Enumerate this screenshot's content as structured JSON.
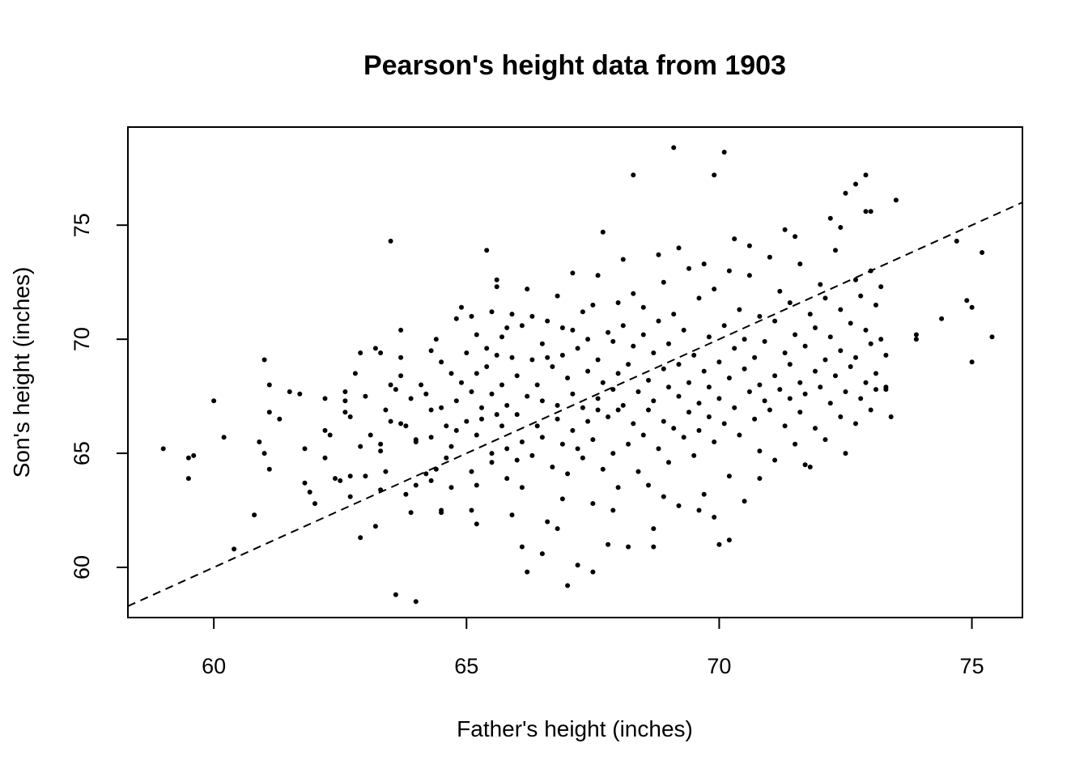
{
  "chart_data": {
    "type": "scatter",
    "title": "Pearson's height data from 1903",
    "xlabel": "Father's height (inches)",
    "ylabel": "Son's height (inches)",
    "xlim": [
      58.3,
      76.0
    ],
    "ylim": [
      57.8,
      79.3
    ],
    "xticks": [
      60,
      65,
      70,
      75
    ],
    "yticks": [
      60,
      65,
      70,
      75
    ],
    "grid": false,
    "legend": "none",
    "point_color": "#000000",
    "reference_line": {
      "style": "dashed",
      "x1": 58.3,
      "y1": 58.3,
      "x2": 76.0,
      "y2": 76.0
    },
    "points": [
      [
        59.0,
        65.2
      ],
      [
        59.5,
        64.8
      ],
      [
        59.5,
        63.9
      ],
      [
        59.6,
        64.9
      ],
      [
        60.0,
        67.3
      ],
      [
        60.2,
        65.7
      ],
      [
        60.4,
        60.8
      ],
      [
        60.8,
        62.3
      ],
      [
        60.9,
        65.5
      ],
      [
        61.0,
        65.0
      ],
      [
        61.0,
        69.1
      ],
      [
        61.1,
        66.8
      ],
      [
        61.1,
        64.3
      ],
      [
        61.1,
        68.0
      ],
      [
        61.3,
        66.5
      ],
      [
        61.5,
        67.7
      ],
      [
        61.7,
        67.6
      ],
      [
        61.8,
        65.2
      ],
      [
        61.8,
        63.7
      ],
      [
        61.9,
        63.3
      ],
      [
        62.0,
        62.8
      ],
      [
        62.2,
        64.8
      ],
      [
        62.2,
        66.0
      ],
      [
        62.2,
        67.4
      ],
      [
        62.3,
        65.8
      ],
      [
        62.4,
        63.9
      ],
      [
        62.5,
        63.8
      ],
      [
        62.6,
        67.7
      ],
      [
        62.6,
        67.3
      ],
      [
        62.6,
        66.8
      ],
      [
        62.7,
        64.0
      ],
      [
        62.7,
        63.1
      ],
      [
        62.7,
        66.6
      ],
      [
        62.8,
        68.5
      ],
      [
        62.9,
        61.3
      ],
      [
        62.9,
        69.4
      ],
      [
        62.9,
        65.3
      ],
      [
        63.0,
        64.0
      ],
      [
        63.0,
        67.5
      ],
      [
        63.1,
        65.8
      ],
      [
        63.2,
        61.8
      ],
      [
        63.2,
        69.6
      ],
      [
        63.3,
        65.4
      ],
      [
        63.3,
        69.4
      ],
      [
        63.3,
        65.1
      ],
      [
        63.4,
        64.2
      ],
      [
        63.4,
        66.9
      ],
      [
        63.5,
        74.3
      ],
      [
        63.5,
        66.4
      ],
      [
        63.5,
        68.0
      ],
      [
        63.6,
        58.8
      ],
      [
        63.6,
        67.8
      ],
      [
        63.7,
        66.3
      ],
      [
        63.7,
        69.2
      ],
      [
        63.7,
        70.4
      ],
      [
        63.8,
        66.2
      ],
      [
        63.8,
        63.2
      ],
      [
        63.9,
        67.4
      ],
      [
        64.0,
        65.6
      ],
      [
        64.0,
        63.6
      ],
      [
        64.0,
        65.5
      ],
      [
        64.1,
        68.0
      ],
      [
        64.2,
        64.1
      ],
      [
        64.2,
        67.6
      ],
      [
        64.3,
        69.5
      ],
      [
        64.3,
        65.7
      ],
      [
        64.3,
        66.9
      ],
      [
        64.3,
        63.8
      ],
      [
        64.4,
        64.3
      ],
      [
        64.5,
        62.4
      ],
      [
        64.5,
        67.0
      ],
      [
        64.5,
        69.0
      ],
      [
        64.6,
        66.2
      ],
      [
        64.7,
        68.5
      ],
      [
        64.7,
        65.3
      ],
      [
        64.7,
        63.5
      ],
      [
        64.8,
        66.0
      ],
      [
        64.8,
        70.9
      ],
      [
        64.8,
        67.3
      ],
      [
        64.9,
        71.4
      ],
      [
        65.0,
        69.4
      ],
      [
        65.0,
        66.4
      ],
      [
        65.1,
        62.5
      ],
      [
        65.1,
        64.2
      ],
      [
        65.1,
        67.7
      ],
      [
        65.2,
        70.2
      ],
      [
        65.2,
        65.8
      ],
      [
        65.2,
        68.5
      ],
      [
        65.2,
        63.6
      ],
      [
        65.3,
        67.0
      ],
      [
        65.3,
        66.5
      ],
      [
        65.4,
        68.8
      ],
      [
        65.4,
        69.6
      ],
      [
        65.4,
        73.9
      ],
      [
        65.5,
        65.0
      ],
      [
        65.5,
        67.6
      ],
      [
        65.5,
        71.2
      ],
      [
        65.5,
        64.6
      ],
      [
        65.6,
        72.6
      ],
      [
        65.6,
        72.3
      ],
      [
        65.6,
        69.3
      ],
      [
        65.6,
        66.7
      ],
      [
        65.7,
        66.2
      ],
      [
        65.7,
        68.0
      ],
      [
        65.8,
        63.9
      ],
      [
        65.8,
        70.5
      ],
      [
        65.8,
        65.2
      ],
      [
        65.8,
        67.1
      ],
      [
        65.9,
        69.2
      ],
      [
        65.9,
        71.1
      ],
      [
        66.0,
        66.7
      ],
      [
        66.0,
        64.7
      ],
      [
        66.0,
        68.4
      ],
      [
        66.1,
        70.6
      ],
      [
        66.1,
        65.5
      ],
      [
        66.1,
        63.5
      ],
      [
        66.2,
        67.5
      ],
      [
        66.2,
        59.8
      ],
      [
        66.3,
        69.1
      ],
      [
        66.3,
        71.0
      ],
      [
        66.3,
        64.9
      ],
      [
        66.4,
        68.0
      ],
      [
        66.4,
        66.2
      ],
      [
        66.5,
        67.3
      ],
      [
        66.5,
        69.8
      ],
      [
        66.5,
        65.7
      ],
      [
        66.6,
        62.0
      ],
      [
        66.6,
        70.8
      ],
      [
        66.7,
        64.4
      ],
      [
        66.7,
        68.8
      ],
      [
        66.8,
        61.7
      ],
      [
        66.8,
        66.5
      ],
      [
        66.8,
        71.9
      ],
      [
        66.8,
        67.1
      ],
      [
        66.9,
        69.3
      ],
      [
        66.9,
        65.4
      ],
      [
        66.9,
        70.5
      ],
      [
        67.0,
        64.1
      ],
      [
        67.0,
        68.3
      ],
      [
        67.1,
        66.0
      ],
      [
        67.1,
        67.6
      ],
      [
        67.1,
        70.4
      ],
      [
        67.2,
        60.1
      ],
      [
        67.2,
        65.2
      ],
      [
        67.2,
        69.6
      ],
      [
        67.3,
        71.2
      ],
      [
        67.3,
        67.0
      ],
      [
        67.3,
        64.8
      ],
      [
        67.4,
        68.6
      ],
      [
        67.4,
        66.4
      ],
      [
        67.4,
        70.0
      ],
      [
        67.5,
        65.6
      ],
      [
        67.5,
        62.8
      ],
      [
        67.5,
        71.5
      ],
      [
        67.6,
        67.4
      ],
      [
        67.6,
        69.1
      ],
      [
        67.6,
        66.9
      ],
      [
        67.7,
        74.7
      ],
      [
        67.7,
        64.3
      ],
      [
        67.7,
        68.1
      ],
      [
        67.8,
        70.3
      ],
      [
        67.8,
        66.6
      ],
      [
        67.8,
        61.0
      ],
      [
        67.9,
        67.8
      ],
      [
        67.9,
        69.9
      ],
      [
        67.9,
        65.0
      ],
      [
        68.0,
        71.6
      ],
      [
        68.0,
        66.9
      ],
      [
        68.0,
        63.5
      ],
      [
        68.0,
        68.5
      ],
      [
        68.1,
        70.6
      ],
      [
        68.1,
        67.1
      ],
      [
        68.2,
        60.9
      ],
      [
        68.2,
        65.4
      ],
      [
        68.2,
        68.9
      ],
      [
        68.3,
        72.0
      ],
      [
        68.3,
        66.3
      ],
      [
        68.3,
        69.7
      ],
      [
        68.4,
        64.2
      ],
      [
        68.4,
        67.7
      ],
      [
        68.5,
        70.2
      ],
      [
        68.5,
        65.8
      ],
      [
        68.5,
        71.4
      ],
      [
        68.6,
        63.6
      ],
      [
        68.6,
        68.2
      ],
      [
        68.6,
        66.9
      ],
      [
        68.7,
        69.4
      ],
      [
        68.7,
        61.7
      ],
      [
        68.7,
        67.3
      ],
      [
        68.8,
        70.8
      ],
      [
        68.8,
        65.2
      ],
      [
        68.9,
        68.7
      ],
      [
        68.9,
        66.4
      ],
      [
        68.9,
        72.5
      ],
      [
        69.0,
        67.9
      ],
      [
        69.0,
        64.6
      ],
      [
        69.0,
        69.8
      ],
      [
        69.1,
        66.1
      ],
      [
        69.1,
        71.1
      ],
      [
        69.2,
        67.5
      ],
      [
        69.2,
        62.7
      ],
      [
        69.2,
        68.9
      ],
      [
        69.3,
        65.7
      ],
      [
        69.3,
        70.4
      ],
      [
        69.4,
        66.8
      ],
      [
        69.4,
        73.1
      ],
      [
        69.4,
        68.1
      ],
      [
        69.5,
        64.9
      ],
      [
        69.5,
        69.3
      ],
      [
        69.6,
        67.2
      ],
      [
        69.6,
        71.8
      ],
      [
        69.6,
        66.0
      ],
      [
        69.7,
        68.6
      ],
      [
        69.7,
        63.2
      ],
      [
        69.8,
        70.1
      ],
      [
        69.8,
        66.6
      ],
      [
        69.8,
        67.9
      ],
      [
        69.9,
        65.5
      ],
      [
        69.9,
        72.2
      ],
      [
        70.0,
        69.0
      ],
      [
        70.0,
        67.4
      ],
      [
        70.0,
        61.0
      ],
      [
        70.1,
        70.6
      ],
      [
        70.1,
        66.3
      ],
      [
        70.2,
        68.3
      ],
      [
        70.2,
        73.0
      ],
      [
        70.2,
        64.0
      ],
      [
        70.3,
        69.6
      ],
      [
        70.3,
        67.0
      ],
      [
        70.4,
        71.3
      ],
      [
        70.4,
        65.8
      ],
      [
        70.5,
        68.7
      ],
      [
        70.5,
        62.9
      ],
      [
        70.5,
        70.0
      ],
      [
        70.6,
        67.7
      ],
      [
        70.6,
        72.8
      ],
      [
        70.7,
        66.5
      ],
      [
        70.7,
        69.2
      ],
      [
        70.8,
        68.0
      ],
      [
        70.8,
        71.0
      ],
      [
        70.8,
        65.1
      ],
      [
        70.9,
        67.3
      ],
      [
        70.9,
        69.9
      ],
      [
        71.0,
        73.6
      ],
      [
        71.0,
        66.9
      ],
      [
        71.1,
        68.4
      ],
      [
        71.1,
        70.8
      ],
      [
        71.1,
        64.7
      ],
      [
        71.2,
        67.8
      ],
      [
        71.2,
        72.1
      ],
      [
        71.3,
        69.4
      ],
      [
        71.3,
        66.2
      ],
      [
        71.4,
        68.9
      ],
      [
        71.4,
        71.6
      ],
      [
        71.4,
        67.4
      ],
      [
        71.5,
        65.4
      ],
      [
        71.5,
        70.2
      ],
      [
        71.6,
        68.1
      ],
      [
        71.6,
        73.3
      ],
      [
        71.6,
        66.8
      ],
      [
        71.7,
        69.7
      ],
      [
        71.7,
        67.6
      ],
      [
        71.8,
        71.1
      ],
      [
        71.8,
        64.4
      ],
      [
        71.9,
        68.6
      ],
      [
        71.9,
        70.5
      ],
      [
        71.9,
        66.1
      ],
      [
        72.0,
        72.4
      ],
      [
        72.0,
        67.9
      ],
      [
        72.1,
        69.1
      ],
      [
        72.1,
        65.6
      ],
      [
        72.1,
        71.8
      ],
      [
        72.2,
        67.2
      ],
      [
        72.2,
        70.1
      ],
      [
        72.3,
        68.4
      ],
      [
        72.3,
        73.9
      ],
      [
        72.4,
        66.6
      ],
      [
        72.4,
        69.5
      ],
      [
        72.4,
        71.3
      ],
      [
        72.5,
        67.7
      ],
      [
        72.5,
        65.0
      ],
      [
        72.6,
        70.7
      ],
      [
        72.6,
        68.8
      ],
      [
        72.7,
        72.6
      ],
      [
        72.7,
        66.3
      ],
      [
        72.7,
        69.2
      ],
      [
        72.8,
        67.4
      ],
      [
        72.8,
        71.9
      ],
      [
        72.9,
        68.1
      ],
      [
        72.9,
        70.4
      ],
      [
        73.0,
        69.8
      ],
      [
        73.0,
        66.9
      ],
      [
        73.0,
        73.0
      ],
      [
        73.1,
        68.5
      ],
      [
        73.1,
        71.5
      ],
      [
        73.1,
        67.8
      ],
      [
        73.2,
        70.0
      ],
      [
        73.2,
        72.3
      ],
      [
        73.3,
        69.3
      ],
      [
        73.4,
        66.6
      ],
      [
        63.7,
        68.4
      ],
      [
        64.9,
        68.1
      ],
      [
        65.7,
        70.1
      ],
      [
        66.6,
        69.2
      ],
      [
        67.6,
        72.8
      ],
      [
        68.8,
        73.7
      ],
      [
        69.7,
        73.3
      ],
      [
        70.6,
        74.1
      ],
      [
        71.5,
        74.5
      ],
      [
        72.4,
        74.9
      ],
      [
        63.3,
        63.4
      ],
      [
        64.6,
        64.8
      ],
      [
        65.9,
        62.3
      ],
      [
        66.9,
        63.0
      ],
      [
        67.9,
        62.5
      ],
      [
        68.9,
        63.1
      ],
      [
        69.9,
        62.2
      ],
      [
        65.2,
        61.9
      ],
      [
        66.5,
        60.6
      ],
      [
        67.0,
        59.2
      ],
      [
        64.4,
        70.0
      ],
      [
        65.1,
        71.0
      ],
      [
        66.2,
        72.2
      ],
      [
        67.1,
        72.9
      ],
      [
        68.1,
        73.5
      ],
      [
        69.2,
        74.0
      ],
      [
        70.3,
        74.4
      ],
      [
        71.3,
        74.8
      ],
      [
        72.2,
        75.3
      ],
      [
        72.9,
        75.6
      ],
      [
        69.1,
        78.4
      ],
      [
        70.1,
        78.2
      ],
      [
        68.3,
        77.2
      ],
      [
        69.9,
        77.2
      ],
      [
        72.9,
        77.2
      ],
      [
        72.5,
        76.4
      ],
      [
        72.7,
        76.8
      ],
      [
        73.0,
        75.6
      ],
      [
        73.5,
        76.1
      ],
      [
        74.7,
        74.3
      ],
      [
        75.2,
        73.8
      ],
      [
        74.9,
        71.7
      ],
      [
        75.0,
        71.4
      ],
      [
        74.4,
        70.9
      ],
      [
        75.4,
        70.1
      ],
      [
        73.9,
        70.2
      ],
      [
        73.9,
        70.0
      ],
      [
        75.0,
        69.0
      ],
      [
        73.3,
        67.8
      ],
      [
        73.3,
        67.9
      ],
      [
        67.5,
        59.8
      ],
      [
        64.0,
        58.5
      ],
      [
        69.6,
        62.5
      ],
      [
        70.2,
        61.2
      ],
      [
        70.8,
        63.9
      ],
      [
        71.7,
        64.5
      ],
      [
        68.7,
        60.9
      ],
      [
        66.1,
        60.9
      ],
      [
        64.5,
        62.5
      ],
      [
        63.9,
        62.4
      ]
    ]
  }
}
